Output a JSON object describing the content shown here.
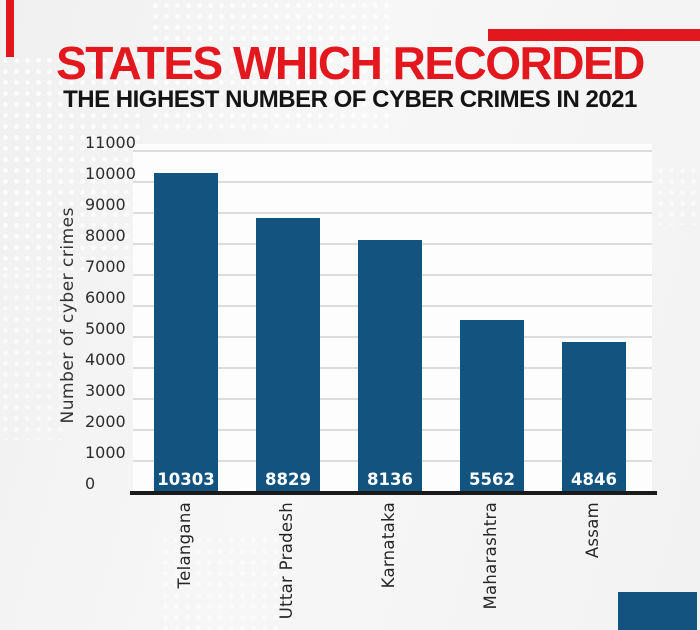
{
  "page": {
    "background_color": "#f3f3f3"
  },
  "header": {
    "title": "STATES WHICH RECORDED",
    "subtitle": "THE HIGHEST NUMBER OF CYBER CRIMES IN 2021",
    "title_color": "#e3171e",
    "subtitle_color": "#141414"
  },
  "decorations": {
    "left_red_stripe_color": "#e3171e",
    "top_right_red_bar_color": "#e3171e",
    "bottom_right_blue_square_color": "#12537f"
  },
  "chart_data": {
    "type": "bar",
    "title": "STATES WHICH RECORDED THE HIGHEST NUMBER OF CYBER CRIMES IN 2021",
    "categories": [
      "Telangana",
      "Uttar Pradesh",
      "Karnataka",
      "Maharashtra",
      "Assam"
    ],
    "values": [
      10303,
      8829,
      8136,
      5562,
      4846
    ],
    "value_labels": [
      "10303",
      "8829",
      "8136",
      "5562",
      "4846"
    ],
    "xlabel": "",
    "ylabel": "Number of cyber crimes",
    "ylim": [
      0,
      11000
    ],
    "ytick_interval": 1000,
    "yticks": [
      0,
      1000,
      2000,
      3000,
      4000,
      5000,
      6000,
      7000,
      8000,
      9000,
      10000,
      11000
    ],
    "grid": true,
    "legend": false,
    "bar_color": "#12537f",
    "value_label_color": "#ffffff",
    "gridline_color": "#dcdcdc",
    "axis_line_color": "#1a1a1a"
  }
}
